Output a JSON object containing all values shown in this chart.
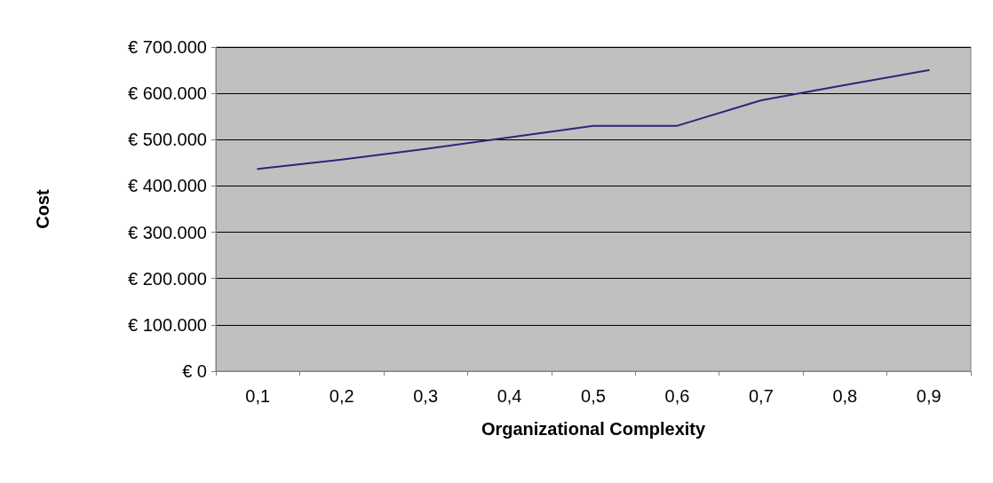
{
  "chart_data": {
    "type": "line",
    "xlabel": "Organizational Complexity",
    "ylabel": "Cost",
    "categories": [
      "0,1",
      "0,2",
      "0,3",
      "0,4",
      "0,5",
      "0,6",
      "0,7",
      "0,8",
      "0,9"
    ],
    "series": [
      {
        "color": "#27277a",
        "values": [
          437000,
          457000,
          480000,
          505000,
          530000,
          530000,
          585000,
          618000,
          650000
        ]
      }
    ],
    "ylim": [
      0,
      700000
    ],
    "yticks": [
      {
        "value": 0,
        "label": "€ 0"
      },
      {
        "value": 100000,
        "label": "€ 100.000"
      },
      {
        "value": 200000,
        "label": "€ 200.000"
      },
      {
        "value": 300000,
        "label": "€ 300.000"
      },
      {
        "value": 400000,
        "label": "€ 400.000"
      },
      {
        "value": 500000,
        "label": "€ 500.000"
      },
      {
        "value": 600000,
        "label": "€ 600.000"
      },
      {
        "value": 700000,
        "label": "€ 700.000"
      }
    ],
    "grid": "y",
    "marker": "none",
    "line_style": "solid"
  }
}
